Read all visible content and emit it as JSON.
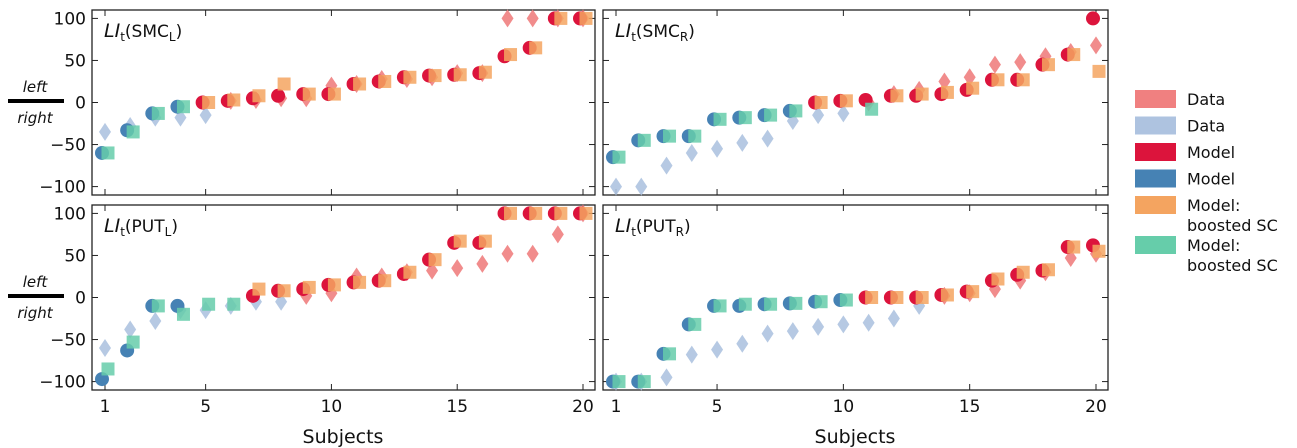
{
  "chart_data": {
    "type": "scatter",
    "xlabel": "Subjects",
    "ylim": [
      -110,
      110
    ],
    "xlim": [
      0.5,
      20.5
    ],
    "x_ticks": [
      1,
      5,
      10,
      15,
      20
    ],
    "y_ticks": [
      100,
      50,
      0,
      -50,
      -100
    ],
    "side_labels": {
      "left": "left",
      "right": "right"
    },
    "colors": {
      "data_red": "#f08080",
      "data_blue": "#aec3e0",
      "model_red": "#dc143c",
      "model_blue": "#4682b4",
      "boosted_orange": "#f4a460",
      "boosted_teal": "#66cdaa"
    },
    "legend": [
      {
        "label": "Data",
        "color_key": "data_red",
        "position": "right"
      },
      {
        "label": "Data",
        "color_key": "data_blue",
        "position": "right"
      },
      {
        "label": "Model",
        "color_key": "model_red",
        "position": "right"
      },
      {
        "label": "Model",
        "color_key": "model_blue",
        "position": "right"
      },
      {
        "label": "Model:\nboosted SC",
        "color_key": "boosted_orange",
        "position": "right"
      },
      {
        "label": "Model:\nboosted SC",
        "color_key": "boosted_teal",
        "position": "right"
      }
    ],
    "panels": [
      {
        "id": "smc-l",
        "label_main": "LI",
        "label_sub": "t",
        "label_region": "SMC",
        "label_region_sub": "L",
        "x": [
          1,
          2,
          3,
          4,
          5,
          6,
          7,
          8,
          9,
          10,
          11,
          12,
          13,
          14,
          15,
          16,
          17,
          18,
          19,
          20
        ],
        "series": [
          {
            "name": "Data",
            "marker": "diamond",
            "color_key": "data_blue",
            "values": [
              -35,
              -28,
              -18,
              -18,
              -15,
              null,
              null,
              null,
              null,
              null,
              null,
              null,
              null,
              null,
              null,
              null,
              null,
              null,
              null,
              null
            ]
          },
          {
            "name": "Data",
            "marker": "diamond",
            "color_key": "data_red",
            "values": [
              null,
              null,
              null,
              null,
              null,
              2,
              3,
              5,
              5,
              20,
              22,
              28,
              28,
              30,
              35,
              35,
              100,
              100,
              100,
              100
            ]
          },
          {
            "name": "Model",
            "marker": "circle",
            "color_key": "model_blue",
            "values": [
              -60,
              -33,
              -13,
              -5,
              null,
              null,
              null,
              null,
              null,
              null,
              null,
              null,
              null,
              null,
              null,
              null,
              null,
              null,
              null,
              null
            ]
          },
          {
            "name": "Model",
            "marker": "circle",
            "color_key": "model_red",
            "values": [
              null,
              null,
              null,
              null,
              0,
              2,
              5,
              8,
              10,
              10,
              22,
              25,
              30,
              32,
              33,
              35,
              55,
              65,
              100,
              100
            ]
          },
          {
            "name": "Model: boosted SC",
            "marker": "square",
            "color_key": "boosted_teal",
            "values": [
              -60,
              -35,
              -13,
              -5,
              null,
              null,
              null,
              null,
              null,
              null,
              null,
              null,
              null,
              null,
              null,
              null,
              null,
              null,
              null,
              null
            ]
          },
          {
            "name": "Model: boosted SC",
            "marker": "square",
            "color_key": "boosted_orange",
            "values": [
              null,
              null,
              null,
              null,
              0,
              3,
              8,
              22,
              10,
              10,
              22,
              25,
              30,
              32,
              33,
              36,
              57,
              65,
              100,
              100
            ]
          }
        ]
      },
      {
        "id": "smc-r",
        "label_main": "LI",
        "label_sub": "t",
        "label_region": "SMC",
        "label_region_sub": "R",
        "x": [
          1,
          2,
          3,
          4,
          5,
          6,
          7,
          8,
          9,
          10,
          11,
          12,
          13,
          14,
          15,
          16,
          17,
          18,
          19,
          20
        ],
        "series": [
          {
            "name": "Data",
            "marker": "diamond",
            "color_key": "data_blue",
            "values": [
              -100,
              -100,
              -75,
              -60,
              -55,
              -48,
              -43,
              -22,
              -15,
              -13,
              null,
              null,
              null,
              null,
              null,
              null,
              null,
              null,
              null,
              null
            ]
          },
          {
            "name": "Data",
            "marker": "diamond",
            "color_key": "data_red",
            "values": [
              null,
              null,
              null,
              null,
              null,
              null,
              null,
              null,
              null,
              null,
              0,
              10,
              15,
              25,
              30,
              45,
              48,
              55,
              60,
              68
            ]
          },
          {
            "name": "Model",
            "marker": "circle",
            "color_key": "model_blue",
            "values": [
              -65,
              -45,
              -40,
              -40,
              -20,
              -18,
              -15,
              -10,
              null,
              null,
              null,
              null,
              null,
              null,
              null,
              null,
              null,
              null,
              null,
              null
            ]
          },
          {
            "name": "Model",
            "marker": "circle",
            "color_key": "model_red",
            "values": [
              null,
              null,
              null,
              null,
              null,
              null,
              null,
              null,
              0,
              2,
              3,
              8,
              8,
              10,
              15,
              27,
              27,
              45,
              57,
              100
            ]
          },
          {
            "name": "Model: boosted SC",
            "marker": "square",
            "color_key": "boosted_teal",
            "values": [
              -65,
              -45,
              -40,
              -40,
              -20,
              -18,
              -15,
              -10,
              null,
              null,
              -8,
              null,
              null,
              null,
              null,
              null,
              null,
              null,
              null,
              null
            ]
          },
          {
            "name": "Model: boosted SC",
            "marker": "square",
            "color_key": "boosted_orange",
            "values": [
              null,
              null,
              null,
              null,
              null,
              null,
              null,
              null,
              0,
              2,
              null,
              8,
              10,
              12,
              17,
              27,
              27,
              45,
              57,
              37
            ]
          }
        ]
      },
      {
        "id": "put-l",
        "label_main": "LI",
        "label_sub": "t",
        "label_region": "PUT",
        "label_region_sub": "L",
        "x": [
          1,
          2,
          3,
          4,
          5,
          6,
          7,
          8,
          9,
          10,
          11,
          12,
          13,
          14,
          15,
          16,
          17,
          18,
          19,
          20
        ],
        "series": [
          {
            "name": "Data",
            "marker": "diamond",
            "color_key": "data_blue",
            "values": [
              -60,
              -38,
              -28,
              -15,
              -15,
              -10,
              -5,
              -5,
              null,
              null,
              null,
              null,
              null,
              null,
              null,
              null,
              null,
              null,
              null,
              null
            ]
          },
          {
            "name": "Data",
            "marker": "diamond",
            "color_key": "data_red",
            "values": [
              null,
              null,
              null,
              null,
              null,
              null,
              null,
              null,
              2,
              5,
              25,
              25,
              30,
              32,
              35,
              40,
              52,
              52,
              75,
              100
            ]
          },
          {
            "name": "Model",
            "marker": "circle",
            "color_key": "model_blue",
            "values": [
              -97,
              -63,
              -10,
              -10,
              null,
              null,
              null,
              null,
              null,
              null,
              null,
              null,
              null,
              null,
              null,
              null,
              null,
              null,
              null,
              null
            ]
          },
          {
            "name": "Model",
            "marker": "circle",
            "color_key": "model_red",
            "values": [
              null,
              null,
              null,
              null,
              null,
              null,
              2,
              8,
              10,
              15,
              18,
              20,
              28,
              45,
              65,
              65,
              100,
              100,
              100,
              100
            ]
          },
          {
            "name": "Model: boosted SC",
            "marker": "square",
            "color_key": "boosted_teal",
            "values": [
              -85,
              -53,
              -10,
              -20,
              -8,
              -8,
              null,
              null,
              null,
              null,
              null,
              null,
              null,
              null,
              null,
              null,
              null,
              null,
              null,
              null
            ]
          },
          {
            "name": "Model: boosted SC",
            "marker": "square",
            "color_key": "boosted_orange",
            "values": [
              null,
              null,
              null,
              null,
              null,
              null,
              10,
              8,
              12,
              15,
              18,
              20,
              30,
              45,
              67,
              67,
              100,
              100,
              100,
              100
            ]
          }
        ]
      },
      {
        "id": "put-r",
        "label_main": "LI",
        "label_sub": "t",
        "label_region": "PUT",
        "label_region_sub": "R",
        "x": [
          1,
          2,
          3,
          4,
          5,
          6,
          7,
          8,
          9,
          10,
          11,
          12,
          13,
          14,
          15,
          16,
          17,
          18,
          19,
          20
        ],
        "series": [
          {
            "name": "Data",
            "marker": "diamond",
            "color_key": "data_blue",
            "values": [
              -100,
              -100,
              -95,
              -68,
              -62,
              -55,
              -43,
              -40,
              -35,
              -32,
              -30,
              -25,
              -10,
              null,
              null,
              null,
              null,
              null,
              null,
              null
            ]
          },
          {
            "name": "Data",
            "marker": "diamond",
            "color_key": "data_red",
            "values": [
              null,
              null,
              null,
              null,
              null,
              null,
              null,
              null,
              null,
              null,
              null,
              null,
              null,
              2,
              5,
              10,
              20,
              30,
              47,
              52
            ]
          },
          {
            "name": "Model",
            "marker": "circle",
            "color_key": "model_blue",
            "values": [
              -100,
              -100,
              -67,
              -32,
              -10,
              -10,
              -8,
              -7,
              -5,
              -3,
              null,
              null,
              null,
              null,
              null,
              null,
              null,
              null,
              null,
              null
            ]
          },
          {
            "name": "Model",
            "marker": "circle",
            "color_key": "model_red",
            "values": [
              null,
              null,
              null,
              null,
              null,
              null,
              null,
              null,
              null,
              null,
              0,
              0,
              0,
              3,
              7,
              20,
              27,
              32,
              60,
              62
            ]
          },
          {
            "name": "Model: boosted SC",
            "marker": "square",
            "color_key": "boosted_teal",
            "values": [
              -100,
              -100,
              -67,
              -32,
              -10,
              -8,
              -8,
              -7,
              -5,
              -3,
              null,
              null,
              null,
              null,
              null,
              null,
              null,
              null,
              null,
              null
            ]
          },
          {
            "name": "Model: boosted SC",
            "marker": "square",
            "color_key": "boosted_orange",
            "values": [
              null,
              null,
              null,
              null,
              null,
              null,
              null,
              null,
              null,
              null,
              0,
              0,
              0,
              3,
              7,
              22,
              30,
              33,
              60,
              55
            ]
          }
        ]
      }
    ]
  }
}
